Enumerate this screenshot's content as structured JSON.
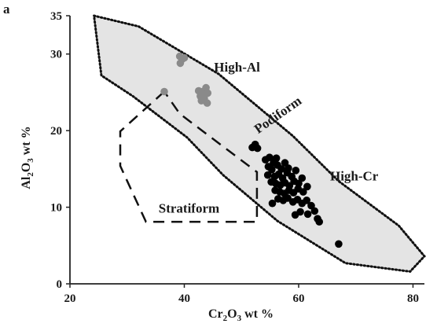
{
  "panel_label": "a",
  "chart_data": {
    "type": "scatter",
    "xlabel_parts": [
      "Cr",
      "2",
      "O",
      "3",
      " wt %"
    ],
    "ylabel_parts": [
      "Al",
      "2",
      "O",
      "3",
      " wt %"
    ],
    "xlim": [
      20,
      82
    ],
    "ylim": [
      0,
      35
    ],
    "x_ticks": [
      20,
      40,
      60,
      80
    ],
    "y_ticks": [
      0,
      10,
      20,
      30,
      35
    ],
    "grid": false,
    "fields": [
      {
        "label": "Podiform",
        "style": "dotted-filled",
        "fill": "#e4e4e4",
        "polygon": [
          [
            24.2,
            35
          ],
          [
            32,
            33.6
          ],
          [
            46,
            27.4
          ],
          [
            59,
            19.3
          ],
          [
            67,
            13.4
          ],
          [
            77.5,
            7.6
          ],
          [
            82,
            3.6
          ],
          [
            79.5,
            1.6
          ],
          [
            68.2,
            2.7
          ],
          [
            56.3,
            8.2
          ],
          [
            46.8,
            14.2
          ],
          [
            40.5,
            19.1
          ],
          [
            31,
            24.5
          ],
          [
            25.5,
            27.2
          ]
        ]
      },
      {
        "label": "Stratiform",
        "style": "dashed",
        "polygon": [
          [
            36.5,
            25.1
          ],
          [
            28.8,
            19.9
          ],
          [
            28.8,
            15.4
          ],
          [
            33.3,
            8.1
          ],
          [
            52.7,
            8.1
          ],
          [
            52.7,
            14.6
          ],
          [
            39.2,
            22.2
          ]
        ]
      }
    ],
    "series": [
      {
        "name": "High-Al",
        "color": "#8a8a8a",
        "points": [
          [
            39.2,
            29.7
          ],
          [
            39.6,
            29.3
          ],
          [
            39.3,
            28.8
          ],
          [
            40.0,
            29.5
          ],
          [
            43.8,
            25.6
          ],
          [
            43.2,
            25.1
          ],
          [
            42.8,
            24.5
          ],
          [
            43.5,
            24.2
          ],
          [
            44.1,
            24.9
          ],
          [
            43.0,
            23.9
          ],
          [
            44.0,
            23.6
          ],
          [
            42.5,
            25.2
          ],
          [
            36.5,
            25.1
          ]
        ]
      },
      {
        "name": "High-Cr",
        "color": "#000000",
        "points": [
          [
            51.9,
            17.8
          ],
          [
            52.5,
            17.9
          ],
          [
            52.4,
            18.2
          ],
          [
            52.8,
            17.7
          ],
          [
            54.2,
            16.2
          ],
          [
            54.9,
            16.5
          ],
          [
            55.6,
            15.8
          ],
          [
            56.1,
            16.4
          ],
          [
            54.7,
            15.3
          ],
          [
            55.3,
            14.9
          ],
          [
            56.3,
            15.5
          ],
          [
            57.0,
            15.0
          ],
          [
            57.6,
            15.8
          ],
          [
            58.2,
            15.1
          ],
          [
            54.6,
            14.2
          ],
          [
            55.8,
            14.0
          ],
          [
            56.5,
            14.3
          ],
          [
            57.2,
            13.8
          ],
          [
            58.0,
            14.5
          ],
          [
            58.8,
            14.0
          ],
          [
            59.5,
            14.8
          ],
          [
            55.2,
            13.3
          ],
          [
            56.0,
            13.1
          ],
          [
            56.8,
            12.9
          ],
          [
            57.6,
            13.2
          ],
          [
            58.4,
            12.8
          ],
          [
            59.2,
            13.4
          ],
          [
            60.0,
            13.1
          ],
          [
            60.6,
            13.8
          ],
          [
            55.9,
            12.2
          ],
          [
            56.7,
            12.0
          ],
          [
            57.5,
            11.8
          ],
          [
            58.3,
            12.2
          ],
          [
            59.1,
            11.9
          ],
          [
            59.9,
            12.4
          ],
          [
            60.8,
            12.0
          ],
          [
            61.5,
            12.7
          ],
          [
            56.4,
            11.1
          ],
          [
            57.3,
            10.9
          ],
          [
            58.1,
            11.2
          ],
          [
            59.0,
            10.7
          ],
          [
            59.8,
            11.0
          ],
          [
            60.6,
            10.5
          ],
          [
            61.4,
            10.9
          ],
          [
            62.2,
            10.2
          ],
          [
            62.8,
            9.5
          ],
          [
            61.6,
            9.1
          ],
          [
            60.3,
            9.4
          ],
          [
            59.4,
            9.0
          ],
          [
            63.3,
            8.5
          ],
          [
            63.6,
            8.1
          ],
          [
            55.4,
            10.5
          ],
          [
            67.0,
            5.2
          ]
        ]
      }
    ],
    "annotations": [
      {
        "text": "High-Al",
        "x": 45.2,
        "y": 27.7,
        "anchor": "start"
      },
      {
        "text": "Podiform",
        "x": 56.8,
        "y": 21.6,
        "anchor": "middle",
        "rotate": -35
      },
      {
        "text": "High-Cr",
        "x": 65.5,
        "y": 13.5,
        "anchor": "start"
      },
      {
        "text": "Stratiform",
        "x": 35.5,
        "y": 9.3,
        "anchor": "start"
      }
    ]
  }
}
